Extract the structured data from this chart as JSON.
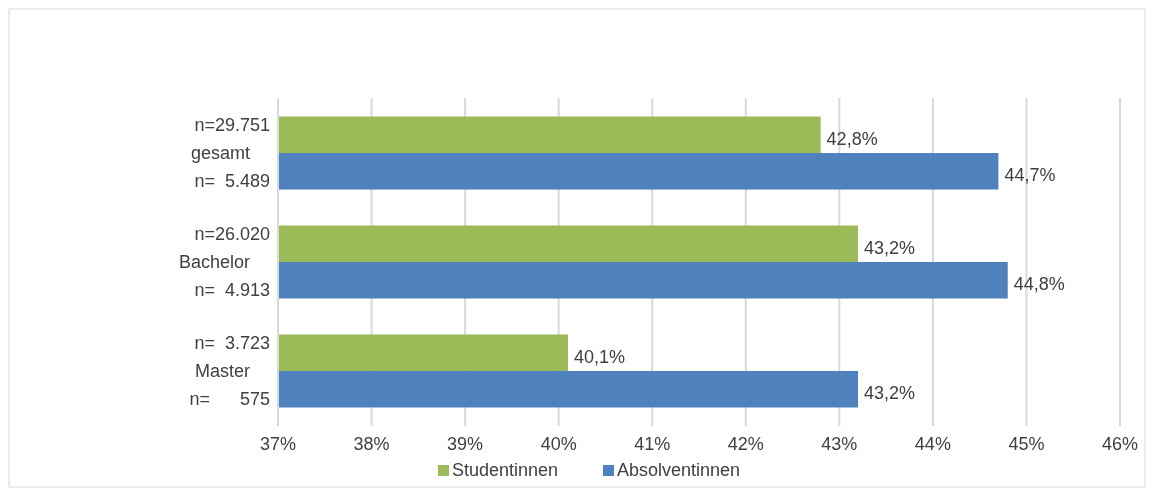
{
  "chart_data": {
    "type": "bar",
    "orientation": "horizontal",
    "categories": [
      "n=29.751\ngesamt\nn=  5.489",
      "n=26.020\nBachelor\nn=  4.913",
      "n=  3.723\nMaster\nn=      575"
    ],
    "series": [
      {
        "name": "Studentinnen",
        "color": "#9bbb59",
        "values": [
          42.8,
          43.2,
          40.1
        ],
        "value_labels": [
          "42,8%",
          "43,2%",
          "40,1%"
        ]
      },
      {
        "name": "Absolventinnen",
        "color": "#4f81bd",
        "values": [
          44.7,
          44.8,
          43.2
        ],
        "value_labels": [
          "44,7%",
          "44,8%",
          "43,2%"
        ]
      }
    ],
    "xlim": [
      37,
      46
    ],
    "xticks": [
      {
        "value": 37,
        "label": "37%"
      },
      {
        "value": 38,
        "label": "38%"
      },
      {
        "value": 39,
        "label": "39%"
      },
      {
        "value": 40,
        "label": "40%"
      },
      {
        "value": 41,
        "label": "41%"
      },
      {
        "value": 42,
        "label": "42%"
      },
      {
        "value": 43,
        "label": "43%"
      },
      {
        "value": 44,
        "label": "44%"
      },
      {
        "value": 45,
        "label": "45%"
      },
      {
        "value": 46,
        "label": "46%"
      }
    ],
    "grid": "x",
    "legend": "bottom"
  }
}
